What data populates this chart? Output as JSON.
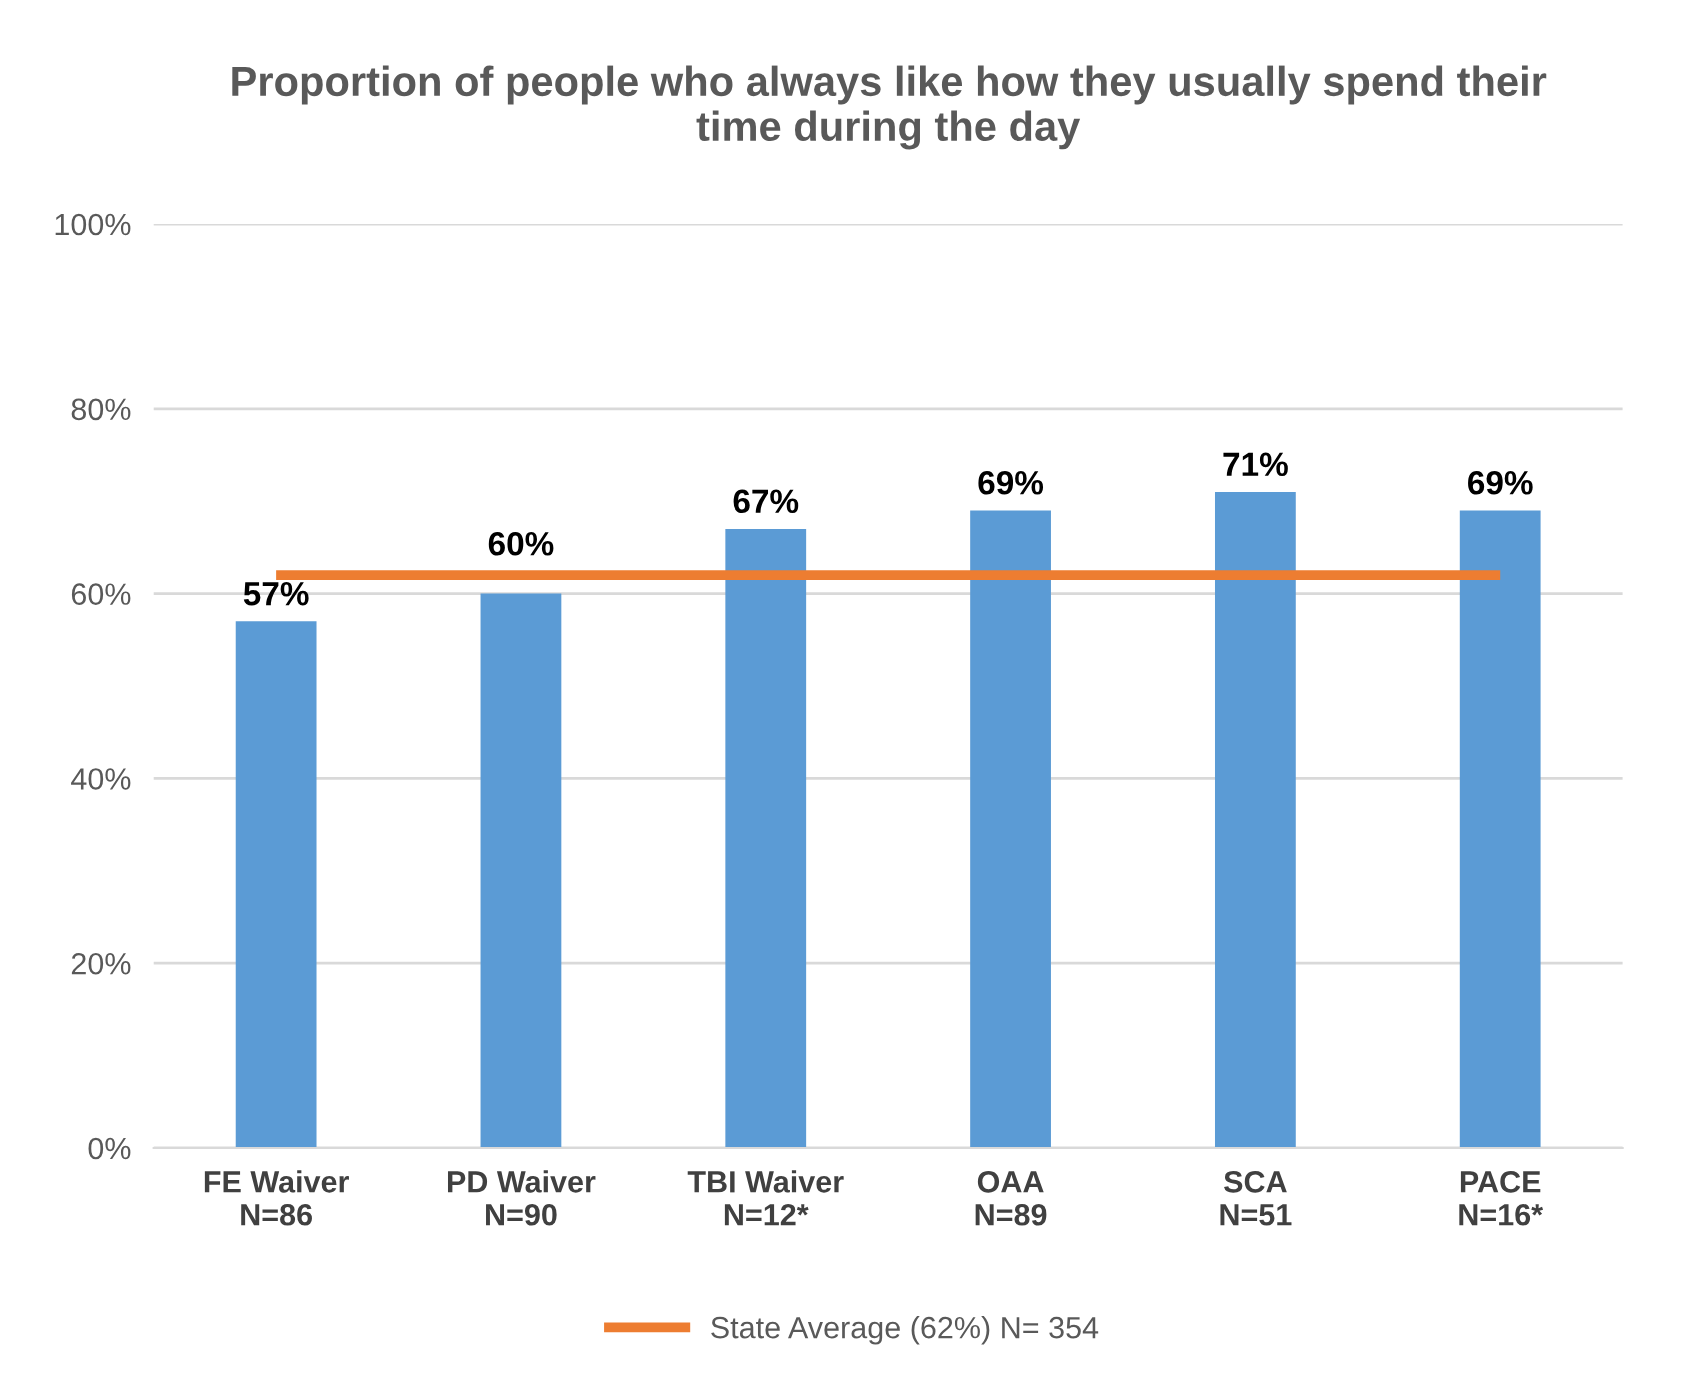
{
  "chart_data": {
    "type": "bar",
    "title": "Proportion of people who always like how they usually spend their\ntime during the day",
    "categories": [
      "FE Waiver\nN=86",
      "PD Waiver\nN=90",
      "TBI Waiver\nN=12*",
      "OAA\nN=89",
      "SCA\nN=51",
      "PACE\nN=16*"
    ],
    "series": [
      {
        "color": "#5b9bd5",
        "values": [
          57,
          60,
          67,
          69,
          71,
          69
        ],
        "value_labels": [
          "57%",
          "60%",
          "67%",
          "69%",
          "71%",
          "69%"
        ]
      },
      {
        "type": "line",
        "name": "State Average (62%) N= 354",
        "color": "#ed7d31",
        "values": [
          62,
          62,
          62,
          62,
          62,
          62
        ]
      }
    ],
    "ylim": [
      0,
      100
    ],
    "yticks": [
      {
        "value": 0,
        "label": "0%"
      },
      {
        "value": 20,
        "label": "20%"
      },
      {
        "value": 40,
        "label": "40%"
      },
      {
        "value": 60,
        "label": "60%"
      },
      {
        "value": 80,
        "label": "80%"
      },
      {
        "value": 100,
        "label": "100%"
      }
    ],
    "grid": "y",
    "legend": "bottom"
  }
}
